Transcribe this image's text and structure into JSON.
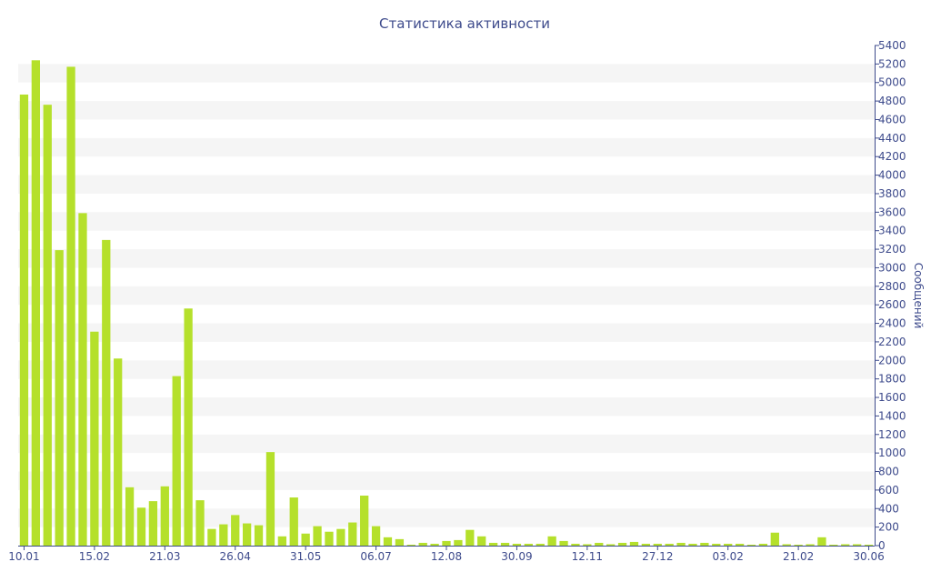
{
  "colors": {
    "bar": "#b5e02b",
    "text": "#3e4b8c",
    "band": "#f5f5f5",
    "axis": "#3e4b8c",
    "background": "#ffffff"
  },
  "chart_data": {
    "type": "bar",
    "title": "Статистика активности",
    "xlabel": "",
    "ylabel": "Сообщений",
    "ylim": [
      0,
      5400
    ],
    "ytick_step": 200,
    "grid": "alternating horizontal bands",
    "y_axis_side": "right",
    "x_tick_labels": [
      {
        "label": "10.01",
        "index": 0
      },
      {
        "label": "15.02",
        "index": 6
      },
      {
        "label": "21.03",
        "index": 12
      },
      {
        "label": "26.04",
        "index": 18
      },
      {
        "label": "31.05",
        "index": 24
      },
      {
        "label": "06.07",
        "index": 30
      },
      {
        "label": "12.08",
        "index": 36
      },
      {
        "label": "30.09",
        "index": 42
      },
      {
        "label": "12.11",
        "index": 48
      },
      {
        "label": "27.12",
        "index": 54
      },
      {
        "label": "03.02",
        "index": 60
      },
      {
        "label": "21.02",
        "index": 66
      },
      {
        "label": "30.06",
        "index": 72
      }
    ],
    "values": [
      4870,
      5240,
      4760,
      3190,
      5170,
      3590,
      2310,
      3300,
      2020,
      630,
      410,
      480,
      640,
      1830,
      2560,
      490,
      180,
      230,
      330,
      240,
      220,
      1010,
      100,
      520,
      130,
      210,
      150,
      180,
      250,
      540,
      210,
      90,
      70,
      10,
      30,
      20,
      50,
      60,
      170,
      100,
      30,
      30,
      20,
      20,
      20,
      100,
      50,
      20,
      15,
      30,
      15,
      30,
      40,
      20,
      20,
      20,
      30,
      20,
      30,
      20,
      20,
      20,
      10,
      20,
      140,
      15,
      10,
      15,
      90,
      10,
      15,
      15,
      10
    ]
  }
}
